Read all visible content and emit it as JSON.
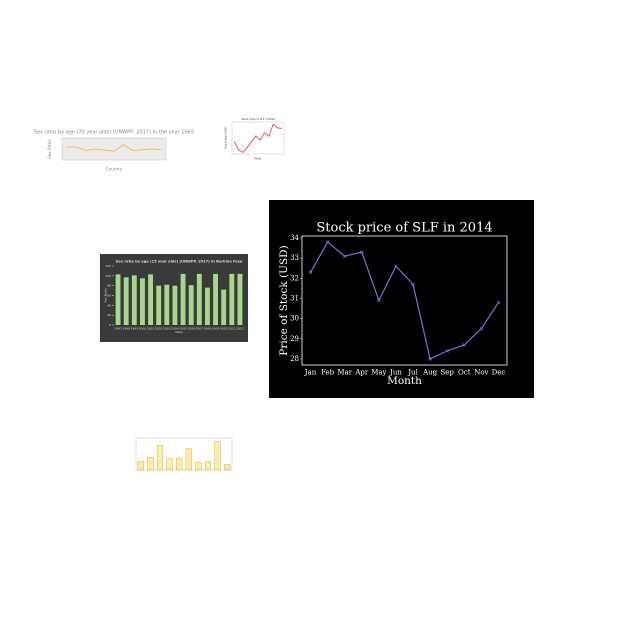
{
  "chart_data": [
    {
      "type": "line",
      "title": "Sex ratio by age (70 year olds) (UNWPP, 2017) in the year 1965",
      "xlabel": "Country",
      "ylabel": "Sex Ratio",
      "values": [
        0.95,
        0.96,
        0.86,
        0.9,
        0.87,
        0.84,
        1.02,
        0.86,
        0.88,
        0.9,
        0.88
      ],
      "color": "#f5b324",
      "background": "#ffffff",
      "plot_background": "#ebebeb",
      "text_color": "#888888",
      "ylim": [
        0.6,
        1.2
      ]
    },
    {
      "type": "line",
      "title": "Stock price of SLF in 2014",
      "xlabel": "Month",
      "ylabel": "Price of Stock (USD)",
      "values": [
        30.2,
        28.6,
        28.1,
        29.0,
        30.1,
        31.2,
        30.4,
        31.8,
        31.1,
        33.4,
        32.7,
        32.6
      ],
      "color": "#d62728",
      "background": "#ffffff",
      "plot_background": "#ffffff",
      "text_color": "#333333",
      "ylim": [
        27.8,
        33.8
      ]
    },
    {
      "type": "bar",
      "title": "Sex ratio by age (15 year olds) (UNWPP, 2017) in Burkina Faso",
      "xlabel": "Years",
      "ylabel": "Sex Ratio",
      "categories": [
        "1997",
        "1998",
        "1999",
        "2000",
        "2001",
        "2002",
        "2003",
        "2004",
        "2005",
        "2006",
        "2007",
        "2008",
        "2009",
        "2010",
        "2011",
        "2012"
      ],
      "values": [
        103,
        97,
        101,
        95,
        103,
        80,
        82,
        80,
        104,
        81,
        104,
        76,
        104,
        72,
        104,
        104
      ],
      "color": "#a6d78c",
      "background": "#3a3a3a",
      "plot_background": "#3a3a3a",
      "text_color": "#dddddd",
      "ylim": [
        0,
        120
      ],
      "yticks": [
        0,
        20,
        40,
        60,
        80,
        100,
        120
      ]
    },
    {
      "type": "line",
      "title": "Stock price of SLF in 2014",
      "xlabel": "Month",
      "ylabel": "Price of Stock (USD)",
      "categories": [
        "Jan",
        "Feb",
        "Mar",
        "Apr",
        "May",
        "Jun",
        "Jul",
        "Aug",
        "Sep",
        "Oct",
        "Nov",
        "Dec"
      ],
      "values": [
        32.3,
        33.8,
        33.1,
        33.3,
        30.9,
        32.6,
        31.7,
        28.0,
        28.4,
        28.7,
        29.5,
        30.8
      ],
      "color": "#6a78d8",
      "background": "#000000",
      "plot_background": "#000000",
      "text_color": "#ffffff",
      "ylim": [
        27.7,
        34.1
      ],
      "yticks": [
        28,
        29,
        30,
        31,
        32,
        33,
        34
      ]
    },
    {
      "type": "bar",
      "values": [
        12,
        18,
        35,
        16,
        17,
        30,
        11,
        12,
        40,
        8
      ],
      "color": "#f2cf3a",
      "background": "#ffffff",
      "plot_background": "#ffffff",
      "text_color": "#888888",
      "ylim": [
        0,
        45
      ]
    }
  ]
}
